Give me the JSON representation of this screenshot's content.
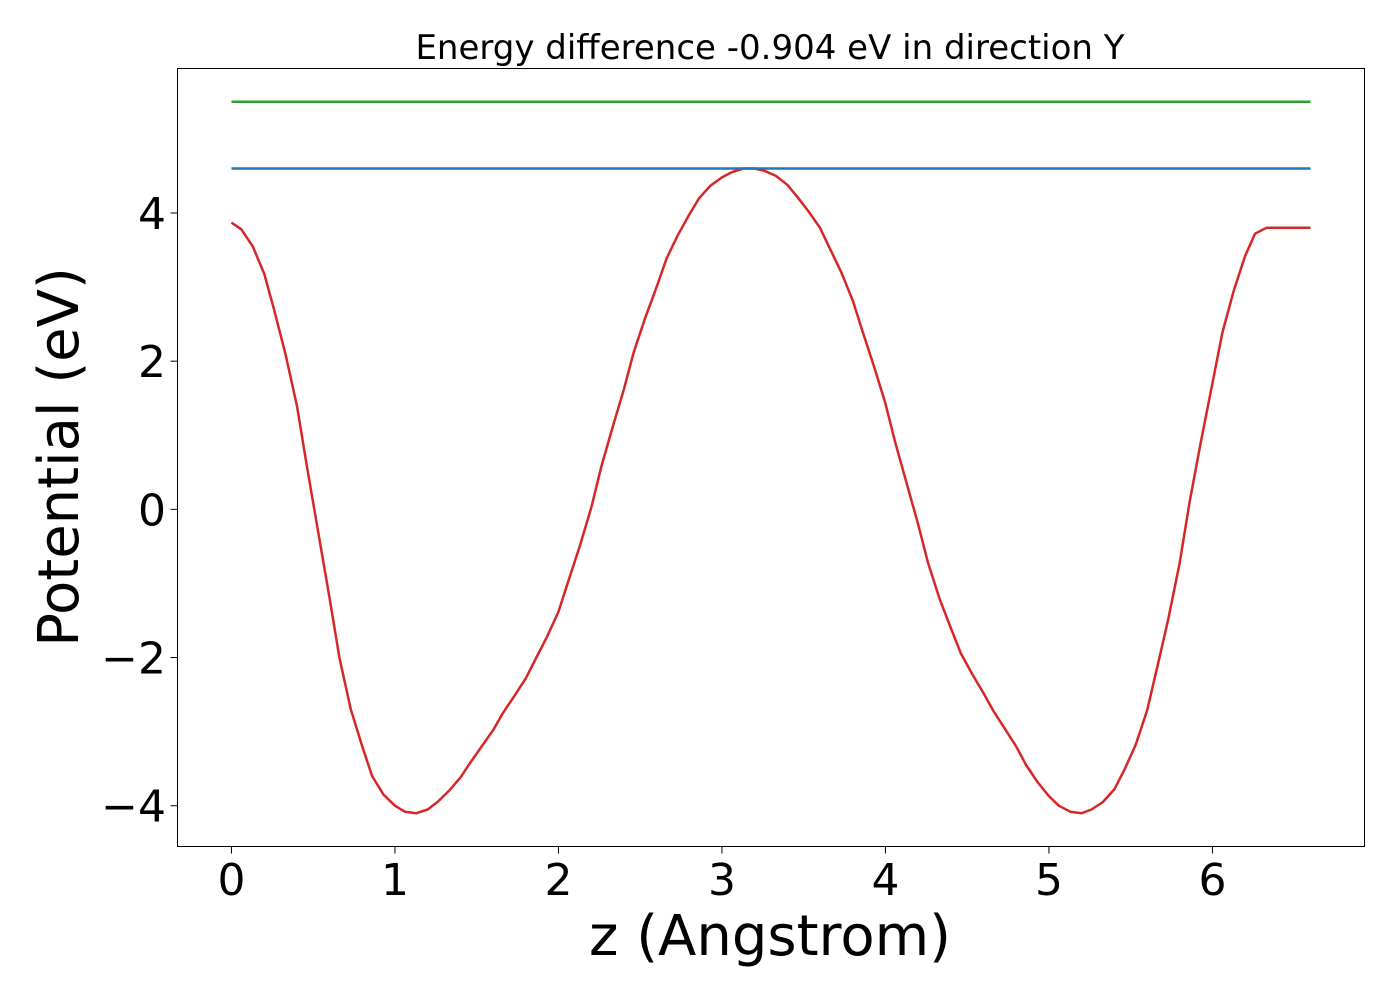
{
  "chart_data": {
    "type": "line",
    "title": "Energy difference -0.904 eV in direction Y",
    "xlabel": "z (Angstrom)",
    "ylabel": "Potential (eV)",
    "xlim": [
      -0.33,
      6.93
    ],
    "ylim": [
      -4.55,
      5.95
    ],
    "xticks": [
      0,
      1,
      2,
      3,
      4,
      5,
      6
    ],
    "xtick_labels": [
      "0",
      "1",
      "2",
      "3",
      "4",
      "5",
      "6"
    ],
    "yticks": [
      -4,
      -2,
      0,
      2,
      4
    ],
    "ytick_labels": [
      "−4",
      "−2",
      "0",
      "2",
      "4"
    ],
    "grid": false,
    "legend": "none",
    "series": [
      {
        "color": "#d62728",
        "x": [
          0.0,
          0.06,
          0.13,
          0.2,
          0.26,
          0.33,
          0.4,
          0.46,
          0.53,
          0.6,
          0.66,
          0.73,
          0.8,
          0.86,
          0.93,
          1.0,
          1.06,
          1.13,
          1.2,
          1.26,
          1.33,
          1.4,
          1.46,
          1.53,
          1.6,
          1.66,
          1.73,
          1.8,
          1.86,
          1.93,
          2.0,
          2.06,
          2.13,
          2.2,
          2.26,
          2.33,
          2.4,
          2.46,
          2.53,
          2.6,
          2.66,
          2.73,
          2.8,
          2.86,
          2.93,
          3.0,
          3.06,
          3.13,
          3.2,
          3.26,
          3.33,
          3.4,
          3.46,
          3.53,
          3.6,
          3.66,
          3.73,
          3.8,
          3.86,
          3.93,
          4.0,
          4.06,
          4.13,
          4.2,
          4.26,
          4.33,
          4.4,
          4.46,
          4.53,
          4.6,
          4.66,
          4.73,
          4.8,
          4.86,
          4.93,
          5.0,
          5.06,
          5.13,
          5.2,
          5.26,
          5.33,
          5.4,
          5.46,
          5.53,
          5.6,
          5.66,
          5.73,
          5.8,
          5.86,
          5.93,
          6.0,
          6.06,
          6.13,
          6.2,
          6.26,
          6.33,
          6.4,
          6.46,
          6.53,
          6.6
        ],
        "y": [
          3.87,
          3.78,
          3.55,
          3.18,
          2.7,
          2.1,
          1.4,
          0.6,
          -0.3,
          -1.2,
          -2.0,
          -2.7,
          -3.2,
          -3.6,
          -3.85,
          -4.0,
          -4.08,
          -4.1,
          -4.05,
          -3.95,
          -3.8,
          -3.62,
          -3.42,
          -3.2,
          -2.98,
          -2.75,
          -2.52,
          -2.28,
          -2.02,
          -1.72,
          -1.38,
          -0.97,
          -0.5,
          0.02,
          0.56,
          1.1,
          1.62,
          2.12,
          2.58,
          3.0,
          3.38,
          3.7,
          3.98,
          4.2,
          4.37,
          4.48,
          4.55,
          4.6,
          4.6,
          4.57,
          4.5,
          4.38,
          4.22,
          4.02,
          3.8,
          3.52,
          3.2,
          2.82,
          2.4,
          1.93,
          1.43,
          0.9,
          0.35,
          -0.2,
          -0.72,
          -1.2,
          -1.6,
          -1.94,
          -2.22,
          -2.48,
          -2.72,
          -2.96,
          -3.2,
          -3.45,
          -3.68,
          -3.87,
          -4.0,
          -4.08,
          -4.1,
          -4.05,
          -3.95,
          -3.78,
          -3.52,
          -3.18,
          -2.72,
          -2.15,
          -1.48,
          -0.72,
          0.1,
          0.92,
          1.7,
          2.38,
          2.95,
          3.42,
          3.72,
          3.8,
          3.8,
          3.8,
          3.8,
          3.8
        ]
      },
      {
        "color": "#1f77b4",
        "x": [
          0.0,
          6.6
        ],
        "y": [
          4.6,
          4.6
        ]
      },
      {
        "color": "#2ca02c",
        "x": [
          0.0,
          6.6
        ],
        "y": [
          5.5,
          5.5
        ]
      }
    ]
  }
}
